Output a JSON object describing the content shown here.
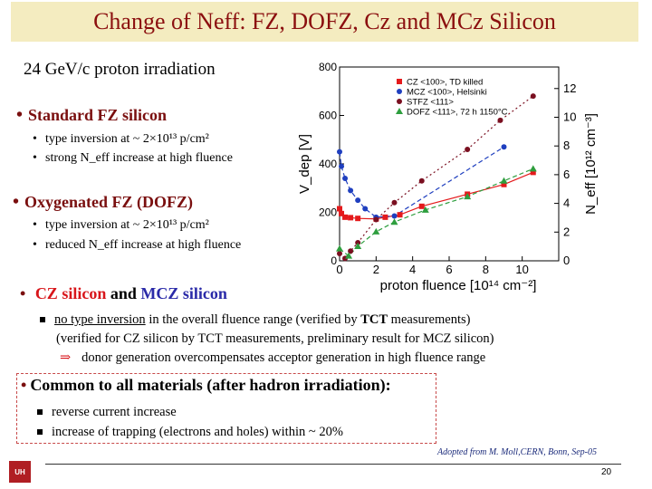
{
  "title": "Change of Neff: FZ, DOFZ, Cz and MCz Silicon",
  "subtitle": "24 GeV/c proton irradiation",
  "sections": {
    "fz": {
      "heading": "Standard FZ silicon",
      "items": [
        "type inversion at ~ 2×10¹³ p/cm²",
        "strong N_eff increase at high fluence"
      ]
    },
    "dofz": {
      "heading": "Oxygenated FZ (DOFZ)",
      "items": [
        "type inversion at ~ 2×10¹³ p/cm²",
        "reduced N_eff increase at high fluence"
      ]
    },
    "cz": {
      "heading_cz": "CZ silicon",
      "heading_and": "and",
      "heading_mcz": "MCZ silicon",
      "line1": "no type inversion in the overall fluence range (verified by TCT measurements)",
      "line1_underlined": "no type inversion",
      "line1_rest": " in the overall fluence range  (verified by ",
      "line1_bold": "TCT",
      "line1_end": " measurements)",
      "line2": "(verified for CZ silicon by TCT measurements,  preliminary result for MCZ silicon)",
      "line3": "donor generation overcompensates acceptor generation in high fluence range"
    },
    "common": {
      "heading": "Common to all materials (after hadron irradiation):",
      "items": [
        "reverse current increase",
        "increase of trapping (electrons and holes) within ~ 20%"
      ]
    }
  },
  "credit": "Adopted from M. Moll,CERN, Bonn, Sep-05",
  "page_number": "20",
  "logo_text": "UH",
  "colors": {
    "title_bg": "#f4ecc0",
    "title_text": "#8b0f0f",
    "cz": "#e41a1c",
    "mcz": "#1f3fbf",
    "stfz": "#7a0f20",
    "dofz": "#2e9e3e"
  },
  "chart_data": {
    "type": "scatter",
    "xlabel": "proton fluence [10¹⁴ cm⁻²]",
    "ylabel": "V_dep [V]",
    "y2label": "N_eff [10¹² cm⁻³]",
    "xlim": [
      0,
      12
    ],
    "ylim": [
      0,
      800
    ],
    "y2lim": [
      0,
      13.5
    ],
    "xticks": [
      0,
      2,
      4,
      6,
      8,
      10
    ],
    "yticks": [
      0,
      200,
      400,
      600,
      800
    ],
    "y2ticks": [
      0,
      2,
      4,
      6,
      8,
      10,
      12
    ],
    "legend_position": "top-right",
    "series": [
      {
        "name": "CZ <100>, TD killed",
        "color": "#e41a1c",
        "marker": "square",
        "line": "solid",
        "x": [
          0,
          0.1,
          0.3,
          0.6,
          1.0,
          2.0,
          2.5,
          3.3,
          4.5,
          7.0,
          9.0,
          10.6
        ],
        "y": [
          215,
          195,
          180,
          178,
          175,
          173,
          180,
          190,
          225,
          275,
          315,
          365
        ]
      },
      {
        "name": "MCZ <100>, Helsinki",
        "color": "#1f3fbf",
        "marker": "circle",
        "line": "dashed",
        "x": [
          0,
          0.1,
          0.3,
          0.6,
          1.0,
          1.4,
          2.0,
          3.0,
          9.0
        ],
        "y": [
          450,
          390,
          340,
          290,
          250,
          215,
          180,
          185,
          470
        ]
      },
      {
        "name": "STFZ <111>",
        "color": "#7a0f20",
        "marker": "circle",
        "line": "dotted",
        "x": [
          0,
          0.3,
          0.6,
          1.0,
          2.0,
          3.0,
          4.5,
          7.0,
          8.8,
          10.6
        ],
        "y": [
          30,
          10,
          40,
          75,
          170,
          240,
          330,
          460,
          580,
          680
        ]
      },
      {
        "name": "DOFZ <111>, 72 h 1150°C",
        "color": "#2e9e3e",
        "marker": "triangle",
        "line": "dashed",
        "x": [
          0,
          0.5,
          1.0,
          2.0,
          3.0,
          4.7,
          7.0,
          9.0,
          10.6
        ],
        "y": [
          50,
          20,
          60,
          120,
          160,
          210,
          265,
          330,
          380
        ]
      }
    ]
  }
}
